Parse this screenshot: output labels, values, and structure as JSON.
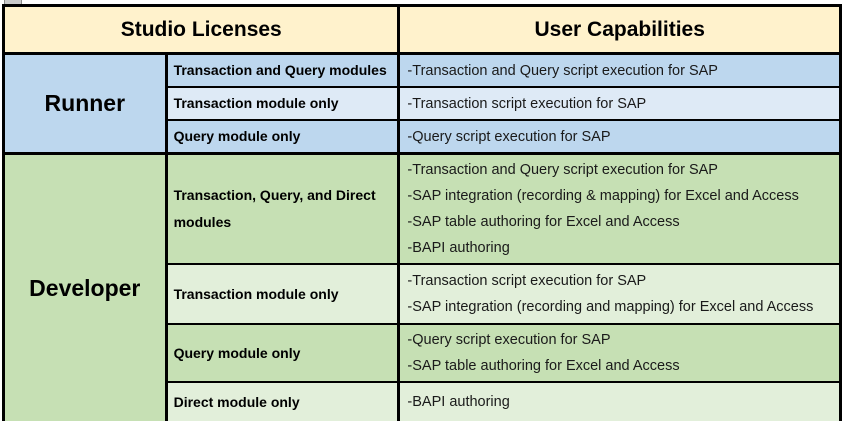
{
  "header": {
    "studio_licenses": "Studio Licenses",
    "user_capabilities": "User Capabilities"
  },
  "sections": [
    {
      "license": "Runner",
      "rows": [
        {
          "module": "Transaction and Query modules",
          "capabilities": [
            "-Transaction and Query script execution for SAP"
          ]
        },
        {
          "module": "Transaction module only",
          "capabilities": [
            "-Transaction script execution for SAP"
          ]
        },
        {
          "module": "Query module only",
          "capabilities": [
            "-Query script execution for SAP"
          ]
        }
      ]
    },
    {
      "license": "Developer",
      "rows": [
        {
          "module": "Transaction, Query, and Direct modules",
          "capabilities": [
            "-Transaction and Query script execution for SAP",
            "-SAP integration (recording & mapping) for Excel and Access",
            "-SAP table authoring for Excel and Access",
            "-BAPI authoring"
          ]
        },
        {
          "module": "Transaction module only",
          "capabilities": [
            "-Transaction script execution for SAP",
            "-SAP integration (recording and mapping) for Excel and Access"
          ]
        },
        {
          "module": "Query module only",
          "capabilities": [
            "-Query script execution for SAP",
            "-SAP table authoring for Excel and Access"
          ]
        },
        {
          "module": "Direct module only",
          "capabilities": [
            "-BAPI authoring"
          ]
        }
      ]
    }
  ],
  "colors": {
    "header_bg": "#FFF2CC",
    "blue_medium": "#BDD7EE",
    "blue_light": "#DEEAF6",
    "green_medium": "#C6E0B4",
    "green_light": "#E2EFDA",
    "border_color": "#000000"
  }
}
